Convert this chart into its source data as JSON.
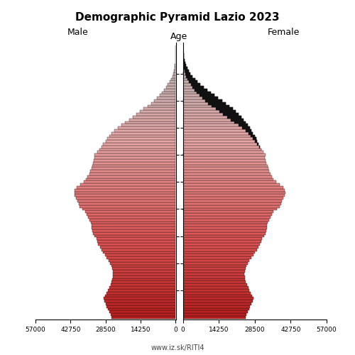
{
  "title": "Demographic Pyramid Lazio 2023",
  "male_label": "Male",
  "female_label": "Female",
  "age_label": "Age",
  "source": "www.iz.sk/RITI4",
  "xlim": 57000,
  "age_min": 0,
  "age_max": 100,
  "male": [
    26000,
    26500,
    27000,
    27500,
    28000,
    28500,
    29000,
    29200,
    28800,
    28200,
    27500,
    27000,
    26500,
    26000,
    25700,
    25500,
    25400,
    25500,
    25800,
    26200,
    26700,
    27300,
    28000,
    28800,
    29500,
    30200,
    30800,
    31500,
    32000,
    32300,
    33000,
    33500,
    34000,
    34200,
    34200,
    34500,
    35000,
    35500,
    36200,
    36800,
    38000,
    39000,
    39500,
    40000,
    40500,
    41000,
    41200,
    41000,
    40200,
    38800,
    37500,
    36500,
    35800,
    35200,
    34700,
    34300,
    34000,
    33700,
    33400,
    33100,
    33000,
    32000,
    31000,
    30200,
    29500,
    28500,
    27800,
    27000,
    26000,
    25000,
    23500,
    22000,
    20500,
    19000,
    17500,
    16000,
    14500,
    13000,
    11500,
    10000,
    8800,
    7600,
    6500,
    5600,
    4700,
    3900,
    3200,
    2500,
    1900,
    1400,
    1000,
    700,
    480,
    330,
    220,
    150,
    100,
    65,
    40,
    25,
    15
  ],
  "female": [
    24800,
    25200,
    25700,
    26200,
    26700,
    27200,
    27700,
    27900,
    27500,
    27000,
    26400,
    25900,
    25400,
    25000,
    24700,
    24500,
    24400,
    24500,
    24800,
    25200,
    25800,
    26400,
    27100,
    27900,
    28600,
    29300,
    29900,
    30600,
    31100,
    31400,
    32200,
    32700,
    33200,
    33400,
    33400,
    33700,
    34200,
    34700,
    35400,
    36000,
    37300,
    38400,
    38900,
    39400,
    39900,
    40500,
    40700,
    40500,
    39700,
    38300,
    37000,
    36000,
    35300,
    34700,
    34200,
    33800,
    33500,
    33200,
    32900,
    32600,
    32800,
    32000,
    31200,
    30500,
    30000,
    29500,
    29000,
    28500,
    27800,
    27200,
    26500,
    25800,
    25000,
    24200,
    23200,
    22200,
    21000,
    19800,
    18500,
    17000,
    15500,
    14000,
    12500,
    11000,
    9600,
    8200,
    7000,
    5800,
    4800,
    3800,
    3000,
    2300,
    1700,
    1200,
    870,
    620,
    430,
    290,
    190,
    120,
    70
  ],
  "bar_height": 1.0,
  "background_color": "#ffffff"
}
